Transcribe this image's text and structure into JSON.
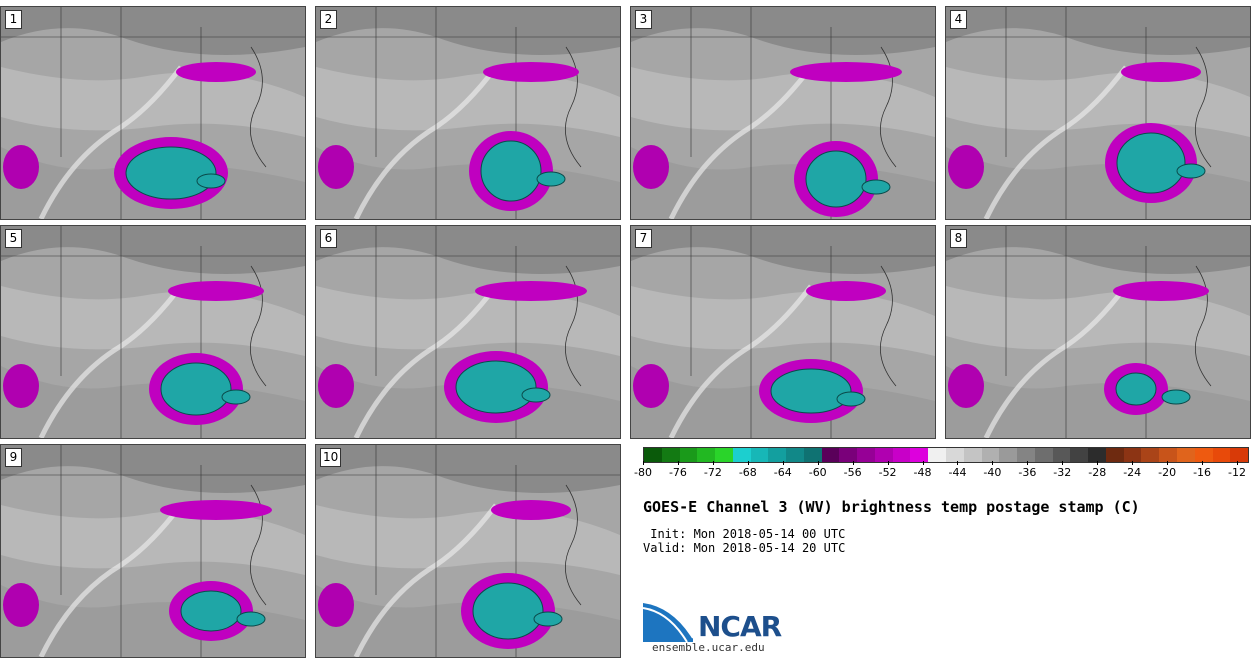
{
  "figure": {
    "title": "GOES-E Channel 3 (WV) brightness temp postage stamp (C)",
    "init": " Init: Mon 2018-05-14 00 UTC",
    "valid": "Valid: Mon 2018-05-14 20 UTC"
  },
  "stamps": [
    {
      "label": "1"
    },
    {
      "label": "2"
    },
    {
      "label": "3"
    },
    {
      "label": "4"
    },
    {
      "label": "5"
    },
    {
      "label": "6"
    },
    {
      "label": "7"
    },
    {
      "label": "8"
    },
    {
      "label": "9"
    },
    {
      "label": "10"
    }
  ],
  "colorbar": {
    "ticks": [
      "-80",
      "-76",
      "-72",
      "-68",
      "-64",
      "-60",
      "-56",
      "-52",
      "-48",
      "-44",
      "-40",
      "-36",
      "-32",
      "-28",
      "-24",
      "-20",
      "-16",
      "-12"
    ],
    "colors": [
      "#0a5a0a",
      "#137a13",
      "#1a9a1a",
      "#22b822",
      "#2ad42a",
      "#1ccfcf",
      "#17b7b7",
      "#139f9f",
      "#118888",
      "#0f7272",
      "#5a005a",
      "#7a007a",
      "#960096",
      "#b000b0",
      "#c800c8",
      "#dd00dd",
      "#f0f0f0",
      "#d8d8d8",
      "#c4c4c4",
      "#b0b0b0",
      "#9a9a9a",
      "#848484",
      "#6e6e6e",
      "#585858",
      "#424242",
      "#2c2c2c",
      "#6e2a10",
      "#8c3414",
      "#aa4418",
      "#c8541a",
      "#e0641c",
      "#ee5a10",
      "#e84a0a",
      "#d83a08"
    ]
  },
  "logo": {
    "brand": "NCAR",
    "url": "ensemble.ucar.edu"
  }
}
